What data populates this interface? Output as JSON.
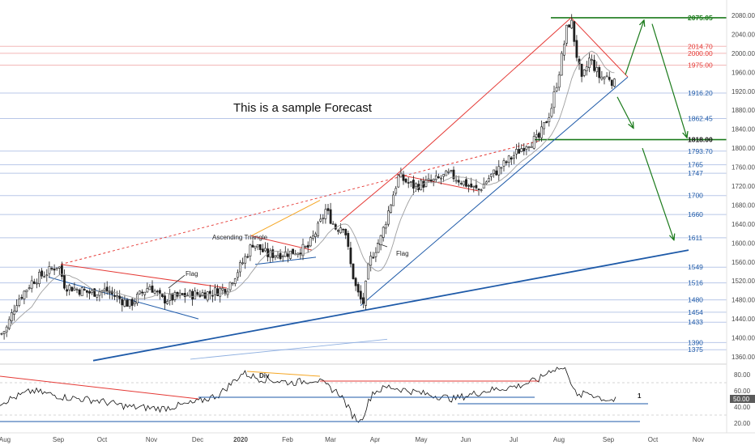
{
  "chart_data": {
    "type": "candlestick",
    "title": "This is a sample Forecast",
    "x_month_labels": [
      "Aug",
      "Sep",
      "Oct",
      "Nov",
      "Dec",
      "2020",
      "Feb",
      "Mar",
      "Apr",
      "May",
      "Jun",
      "Jul",
      "Aug",
      "Sep",
      "Oct",
      "Nov"
    ],
    "y_ticks": [
      1360,
      1400,
      1440,
      1480,
      1520,
      1560,
      1600,
      1640,
      1680,
      1720,
      1760,
      1800,
      1840,
      1880,
      1920,
      1960,
      2000,
      2040,
      2080
    ],
    "ylim": [
      1350,
      2095
    ],
    "last_price": 1932.45,
    "levels": [
      {
        "label": "2075.05",
        "value": 2075.05,
        "style": "green-bold"
      },
      {
        "label": "2014.70",
        "value": 2014.7,
        "style": "red"
      },
      {
        "label": "2000.00",
        "value": 2000.0,
        "style": "red"
      },
      {
        "label": "1975.00",
        "value": 1975.0,
        "style": "red"
      },
      {
        "label": "1916.20",
        "value": 1916.2,
        "style": "blue"
      },
      {
        "label": "1862.45",
        "value": 1862.45,
        "style": "blue"
      },
      {
        "label": "1818.00",
        "value": 1818.0,
        "style": "black-bold"
      },
      {
        "label": "1793.70",
        "value": 1793.7,
        "style": "blue"
      },
      {
        "label": "1765",
        "value": 1765,
        "style": "blue"
      },
      {
        "label": "1747",
        "value": 1747,
        "style": "blue"
      },
      {
        "label": "1700",
        "value": 1700,
        "style": "blue"
      },
      {
        "label": "1660",
        "value": 1660,
        "style": "blue"
      },
      {
        "label": "1611",
        "value": 1611,
        "style": "blue"
      },
      {
        "label": "1549",
        "value": 1549,
        "style": "blue"
      },
      {
        "label": "1516",
        "value": 1516,
        "style": "blue"
      },
      {
        "label": "1480",
        "value": 1480,
        "style": "blue"
      },
      {
        "label": "1454",
        "value": 1454,
        "style": "blue"
      },
      {
        "label": "1433",
        "value": 1433,
        "style": "blue"
      },
      {
        "label": "1390",
        "value": 1390,
        "style": "blue"
      },
      {
        "label": "1375",
        "value": 1375,
        "style": "blue"
      }
    ],
    "annotations": [
      {
        "text": "Flag"
      },
      {
        "text": "Ascending Triangle"
      },
      {
        "text": "Flag"
      },
      {
        "text": "Div"
      },
      {
        "text": "1"
      }
    ],
    "rsi": {
      "ticks": [
        20,
        40,
        60,
        80
      ],
      "ylim": [
        13,
        93
      ],
      "last_value": 50,
      "last_label": "50.00",
      "levels": [
        70,
        30
      ]
    }
  },
  "colors": {
    "up": "#26a69a",
    "down": "#26a69a",
    "candle": "#1e1e1e",
    "ma": "#9e9e9e",
    "red": "#e53935",
    "blue": "#1e5aa8",
    "green": "#1b7a1b",
    "orange": "#f5a623",
    "grid_blue": "#b8c7e8",
    "grid_red": "#f3b8b8"
  }
}
